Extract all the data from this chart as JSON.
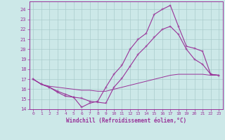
{
  "xlabel": "Windchill (Refroidissement éolien,°C)",
  "bg_color": "#cce8e8",
  "grid_color": "#aacccc",
  "line_color": "#993399",
  "xlim_min": -0.5,
  "xlim_max": 23.5,
  "ylim_min": 14,
  "ylim_max": 24.8,
  "yticks": [
    14,
    15,
    16,
    17,
    18,
    19,
    20,
    21,
    22,
    23,
    24
  ],
  "xticks": [
    0,
    1,
    2,
    3,
    4,
    5,
    6,
    7,
    8,
    9,
    10,
    11,
    12,
    13,
    14,
    15,
    16,
    17,
    18,
    19,
    20,
    21,
    22,
    23
  ],
  "line1_x": [
    0,
    1,
    2,
    3,
    4,
    5,
    6,
    7,
    8,
    9,
    10,
    11,
    12,
    13,
    14,
    15,
    16,
    17,
    18,
    19,
    20,
    21,
    22,
    23
  ],
  "line1_y": [
    17.0,
    16.5,
    16.2,
    15.7,
    15.3,
    15.2,
    14.2,
    14.6,
    14.8,
    16.2,
    17.5,
    18.4,
    20.0,
    21.0,
    21.6,
    23.5,
    24.0,
    24.4,
    22.3,
    20.3,
    20.1,
    19.8,
    17.5,
    17.4
  ],
  "line2_x": [
    0,
    1,
    2,
    3,
    4,
    5,
    6,
    7,
    8,
    9,
    10,
    11,
    12,
    13,
    14,
    15,
    16,
    17,
    18,
    19,
    20,
    21,
    22,
    23
  ],
  "line2_y": [
    17.0,
    16.5,
    16.2,
    15.8,
    15.5,
    15.2,
    15.1,
    14.8,
    14.7,
    14.6,
    16.2,
    17.1,
    18.3,
    19.5,
    20.3,
    21.2,
    22.0,
    22.3,
    21.5,
    20.0,
    19.0,
    18.5,
    17.5,
    17.4
  ],
  "line3_x": [
    0,
    1,
    2,
    3,
    4,
    5,
    6,
    7,
    8,
    9,
    10,
    11,
    12,
    13,
    14,
    15,
    16,
    17,
    18,
    19,
    20,
    21,
    22,
    23
  ],
  "line3_y": [
    17.0,
    16.5,
    16.3,
    16.2,
    16.1,
    16.0,
    15.9,
    15.9,
    15.8,
    15.8,
    16.0,
    16.2,
    16.4,
    16.6,
    16.8,
    17.0,
    17.2,
    17.4,
    17.5,
    17.5,
    17.5,
    17.5,
    17.4,
    17.4
  ]
}
